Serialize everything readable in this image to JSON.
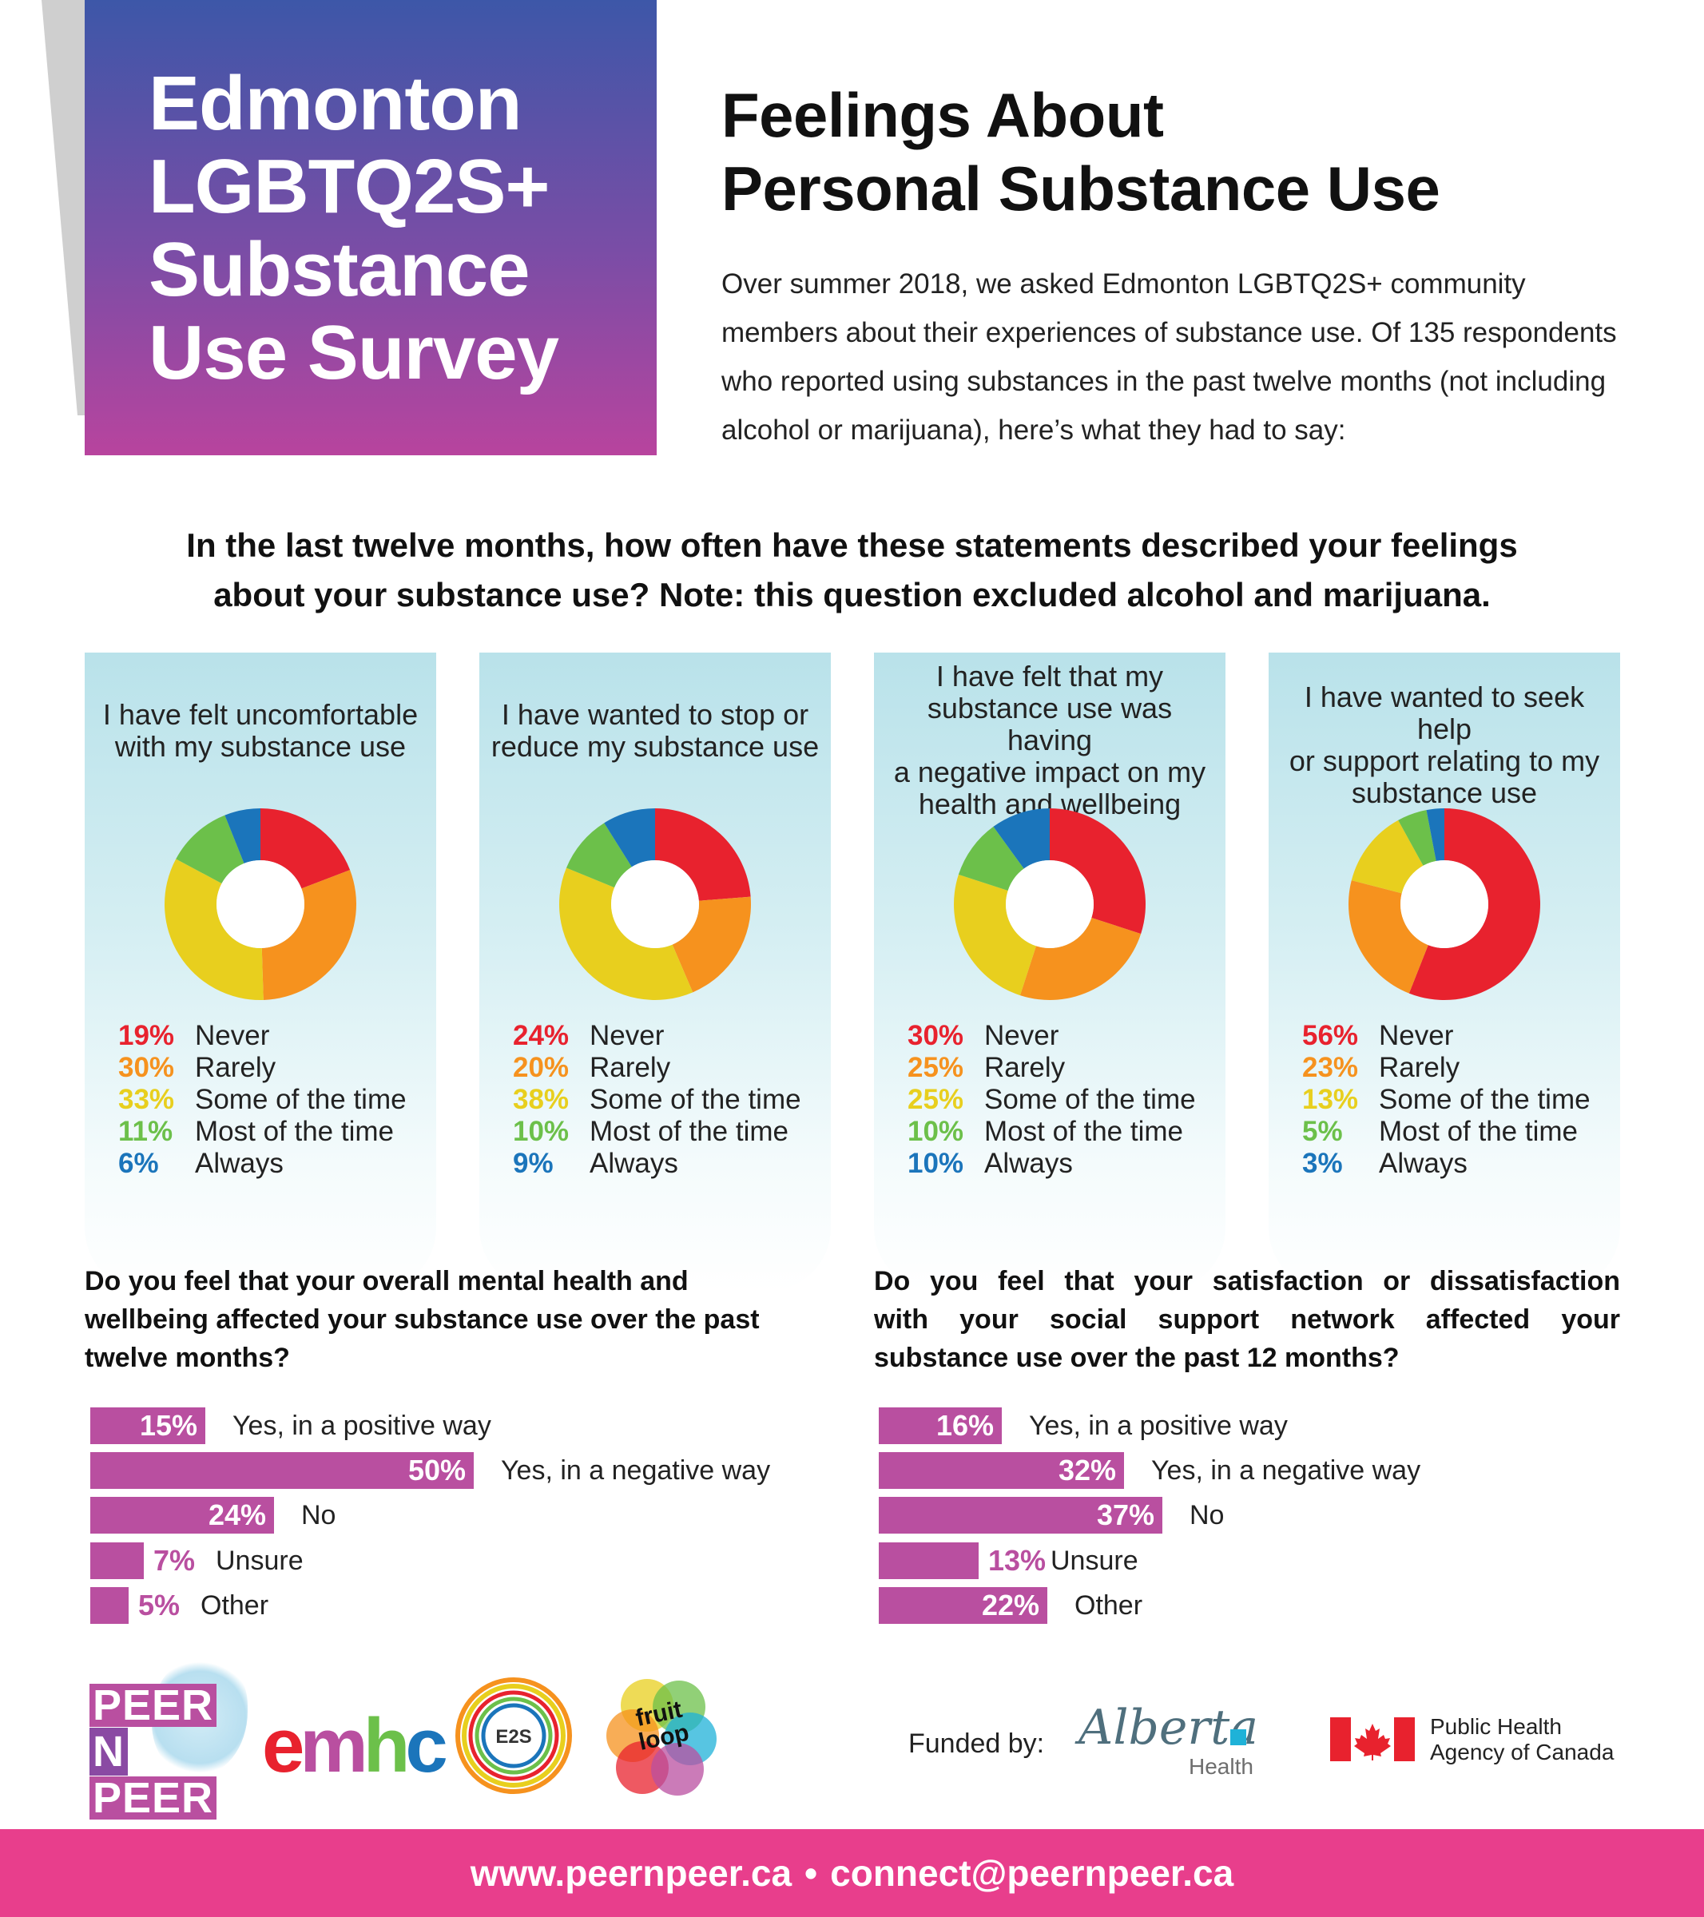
{
  "header": {
    "survey_title_lines": [
      "Edmonton",
      "LGBTQ2S+",
      "Substance",
      "Use Survey"
    ],
    "heading_lines": [
      "Feelings About",
      "Personal Substance Use"
    ],
    "intro": "Over summer 2018, we asked Edmonton LGBTQ2S+ community members about their experiences of substance use. Of 135 respondents who reported using substances in the past twelve months (not including alcohol or marijuana), here’s what they had to say:"
  },
  "question_lines": [
    "In the last twelve months, how often have these statements described your feelings",
    "about your substance use? Note: this question excluded alcohol and marijuana."
  ],
  "colors": {
    "never": "#e8222e",
    "rarely": "#f6921e",
    "some": "#e8cf1e",
    "most": "#6cc04a",
    "always": "#1b75bb",
    "bar": "#b94fa0",
    "footer": "#e83e8c"
  },
  "chart_data": [
    {
      "type": "pie",
      "title_lines": [
        "I have felt uncomfortable",
        "with my substance use"
      ],
      "categories": [
        "Never",
        "Rarely",
        "Some of the time",
        "Most of the time",
        "Always"
      ],
      "values": [
        19,
        30,
        33,
        11,
        6
      ],
      "labels": [
        "19%",
        "30%",
        "33%",
        "11%",
        "6%"
      ]
    },
    {
      "type": "pie",
      "title_lines": [
        "I have wanted to stop or",
        "reduce my substance use"
      ],
      "categories": [
        "Never",
        "Rarely",
        "Some of the time",
        "Most of the time",
        "Always"
      ],
      "values": [
        24,
        20,
        38,
        10,
        9
      ],
      "labels": [
        "24%",
        "20%",
        "38%",
        "10%",
        "9%"
      ]
    },
    {
      "type": "pie",
      "title_lines": [
        "I have felt that my",
        "substance use was having",
        "a negative impact on my",
        "health and wellbeing"
      ],
      "categories": [
        "Never",
        "Rarely",
        "Some of the time",
        "Most of the time",
        "Always"
      ],
      "values": [
        30,
        25,
        25,
        10,
        10
      ],
      "labels": [
        "30%",
        "25%",
        "25%",
        "10%",
        "10%"
      ]
    },
    {
      "type": "pie",
      "title_lines": [
        "I have wanted to seek help",
        "or support relating to my",
        "substance use"
      ],
      "categories": [
        "Never",
        "Rarely",
        "Some of the time",
        "Most of the time",
        "Always"
      ],
      "values": [
        56,
        23,
        13,
        5,
        3
      ],
      "labels": [
        "56%",
        "23%",
        "13%",
        "5%",
        "3%"
      ]
    },
    {
      "type": "bar",
      "orientation": "horizontal",
      "title": "Do you feel that your overall mental health and wellbeing affected your substance use over the past twelve months?",
      "categories": [
        "Yes, in a positive way",
        "Yes, in a negative way",
        "No",
        "Unsure",
        "Other"
      ],
      "values": [
        15,
        50,
        24,
        7,
        5
      ],
      "labels": [
        "15%",
        "50%",
        "24%",
        "7%",
        "5%"
      ]
    },
    {
      "type": "bar",
      "orientation": "horizontal",
      "title": "Do you feel that your satisfaction or dissatisfaction with your social support network affected your substance use over the past 12 months?",
      "title_lines": [
        "Do you feel that your satisfaction or dissatisfaction",
        "with your social support network affected your",
        "substance use over the past 12 months?"
      ],
      "categories": [
        "Yes, in a positive way",
        "Yes, in a negative way",
        "No",
        "Unsure",
        "Other"
      ],
      "values": [
        16,
        32,
        37,
        13,
        22
      ],
      "labels": [
        "16%",
        "32%",
        "37%",
        "13%",
        "22%"
      ]
    }
  ],
  "logos": {
    "peer_lines": [
      "PEER",
      "N",
      "PEER"
    ],
    "emhc": "emhc",
    "e2s": "E2S",
    "fruit_lines": [
      "fruit",
      "loop"
    ],
    "funded_by": "Funded by:",
    "alberta": "Alberta",
    "alberta_health": "Health",
    "phac_lines": [
      "Public Health",
      "Agency of Canada"
    ]
  },
  "footer": {
    "website": "www.peernpeer.ca",
    "separator": "•",
    "email": "connect@peernpeer.ca"
  }
}
